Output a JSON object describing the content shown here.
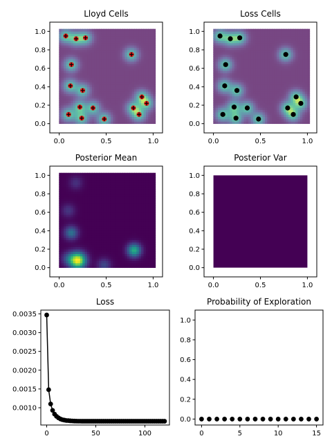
{
  "figure": {
    "background": "#ffffff",
    "panel_bg": "#ffffff",
    "axis_color": "#000000"
  },
  "chart_data": [
    {
      "id": "lloyd",
      "type": "scatter",
      "title": "Lloyd Cells",
      "xlim": [
        -0.1,
        1.1
      ],
      "ylim": [
        -0.1,
        1.1
      ],
      "xticks": [
        0.0,
        0.5,
        1.0
      ],
      "xtick_labels": [
        "0.0",
        "0.5",
        "1.0"
      ],
      "yticks": [
        0.0,
        0.2,
        0.4,
        0.6,
        0.8,
        1.0
      ],
      "ytick_labels": [
        "0.0",
        "0.2",
        "0.4",
        "0.6",
        "0.8",
        "1.0"
      ],
      "overlay": "voronoi",
      "marker": "plus",
      "marker_color": "#e11a1a",
      "points": [
        [
          0.07,
          0.95
        ],
        [
          0.18,
          0.92
        ],
        [
          0.28,
          0.93
        ],
        [
          0.13,
          0.64
        ],
        [
          0.77,
          0.75
        ],
        [
          0.12,
          0.41
        ],
        [
          0.25,
          0.36
        ],
        [
          0.88,
          0.29
        ],
        [
          0.22,
          0.18
        ],
        [
          0.36,
          0.17
        ],
        [
          0.79,
          0.17
        ],
        [
          0.93,
          0.22
        ],
        [
          0.1,
          0.1
        ],
        [
          0.24,
          0.06
        ],
        [
          0.48,
          0.05
        ],
        [
          0.85,
          0.1
        ]
      ]
    },
    {
      "id": "loss-cells",
      "type": "scatter",
      "title": "Loss Cells",
      "xlim": [
        -0.1,
        1.1
      ],
      "ylim": [
        -0.1,
        1.1
      ],
      "xticks": [
        0.0,
        0.5,
        1.0
      ],
      "xtick_labels": [
        "0.0",
        "0.5",
        "1.0"
      ],
      "yticks": [
        0.0,
        0.2,
        0.4,
        0.6,
        0.8,
        1.0
      ],
      "ytick_labels": [
        "0.0",
        "0.2",
        "0.4",
        "0.6",
        "0.8",
        "1.0"
      ],
      "overlay": "voronoi",
      "marker": "dot",
      "marker_color": "#000000",
      "points": [
        [
          0.07,
          0.95
        ],
        [
          0.18,
          0.92
        ],
        [
          0.28,
          0.93
        ],
        [
          0.13,
          0.64
        ],
        [
          0.77,
          0.75
        ],
        [
          0.12,
          0.41
        ],
        [
          0.25,
          0.36
        ],
        [
          0.88,
          0.29
        ],
        [
          0.22,
          0.18
        ],
        [
          0.36,
          0.17
        ],
        [
          0.79,
          0.17
        ],
        [
          0.93,
          0.22
        ],
        [
          0.1,
          0.1
        ],
        [
          0.24,
          0.06
        ],
        [
          0.48,
          0.05
        ],
        [
          0.85,
          0.1
        ]
      ]
    },
    {
      "id": "posterior-mean",
      "type": "heatmap",
      "title": "Posterior Mean",
      "xlim": [
        -0.1,
        1.1
      ],
      "ylim": [
        -0.1,
        1.1
      ],
      "xticks": [
        0.0,
        0.5,
        1.0
      ],
      "xtick_labels": [
        "0.0",
        "0.5",
        "1.0"
      ],
      "yticks": [
        0.0,
        0.2,
        0.4,
        0.6,
        0.8,
        1.0
      ],
      "ytick_labels": [
        "0.0",
        "0.2",
        "0.4",
        "0.6",
        "0.8",
        "1.0"
      ],
      "colormap": "viridis",
      "bumps": [
        {
          "x": 0.2,
          "y": 0.08,
          "amp": 1.0,
          "sigma": 0.06
        },
        {
          "x": 0.8,
          "y": 0.19,
          "amp": 0.62,
          "sigma": 0.05
        },
        {
          "x": 0.13,
          "y": 0.38,
          "amp": 0.38,
          "sigma": 0.05
        },
        {
          "x": 0.1,
          "y": 0.1,
          "amp": 0.22,
          "sigma": 0.05
        },
        {
          "x": 0.1,
          "y": 0.62,
          "amp": 0.16,
          "sigma": 0.05
        },
        {
          "x": 0.18,
          "y": 0.92,
          "amp": 0.14,
          "sigma": 0.05
        },
        {
          "x": 0.48,
          "y": 0.03,
          "amp": 0.22,
          "sigma": 0.05
        }
      ]
    },
    {
      "id": "posterior-var",
      "type": "heatmap",
      "title": "Posterior Var",
      "xlim": [
        -0.1,
        1.1
      ],
      "ylim": [
        -0.1,
        1.1
      ],
      "xticks": [
        0.0,
        0.5,
        1.0
      ],
      "xtick_labels": [
        "0.0",
        "0.5",
        "1.0"
      ],
      "yticks": [
        0.0,
        0.2,
        0.4,
        0.6,
        0.8,
        1.0
      ],
      "ytick_labels": [
        "0.0",
        "0.2",
        "0.4",
        "0.6",
        "0.8",
        "1.0"
      ],
      "colormap": "viridis",
      "fill_color": "#440154"
    },
    {
      "id": "loss",
      "type": "line",
      "title": "Loss",
      "xlim": [
        -6,
        125
      ],
      "ylim": [
        0.00054,
        0.0036
      ],
      "xticks": [
        0,
        50,
        100
      ],
      "xtick_labels": [
        "0",
        "50",
        "100"
      ],
      "yticks": [
        0.001,
        0.0015,
        0.002,
        0.0025,
        0.003,
        0.0035
      ],
      "ytick_labels": [
        "0.0010",
        "0.0015",
        "0.0020",
        "0.0025",
        "0.0030",
        "0.0035"
      ],
      "x_start": 0,
      "x_end": 120,
      "x_step": 2,
      "values": [
        0.00347,
        0.00148,
        0.0011,
        0.00093,
        0.00083,
        0.00077,
        0.00073,
        0.0007,
        0.00068,
        0.00067,
        0.00066,
        0.000657,
        0.000652,
        0.000648,
        0.000645,
        0.000643,
        0.000642,
        0.000641,
        0.00064,
        0.00064,
        0.00064,
        0.00064,
        0.00064,
        0.00064,
        0.00064,
        0.00064,
        0.00064,
        0.00064,
        0.00064,
        0.00064,
        0.00064,
        0.00064,
        0.00064,
        0.00064,
        0.00064,
        0.00064,
        0.00064,
        0.00064,
        0.00064,
        0.00064,
        0.00064,
        0.00064,
        0.00064,
        0.00064,
        0.00064,
        0.00064,
        0.00064,
        0.00064,
        0.00064,
        0.00064,
        0.00064,
        0.00064,
        0.00064,
        0.00064,
        0.00064,
        0.00064,
        0.00064,
        0.00064,
        0.00064,
        0.00064,
        0.00064
      ],
      "color": "#000000"
    },
    {
      "id": "prob-exploration",
      "type": "scatter",
      "title": "Probability of Exploration",
      "xlim": [
        -0.85,
        15.85
      ],
      "ylim": [
        -0.06,
        1.1
      ],
      "xticks": [
        0,
        5,
        10,
        15
      ],
      "xtick_labels": [
        "0",
        "5",
        "10",
        "15"
      ],
      "yticks": [
        0.0,
        0.2,
        0.4,
        0.6,
        0.8,
        1.0
      ],
      "ytick_labels": [
        "0.0",
        "0.2",
        "0.4",
        "0.6",
        "0.8",
        "1.0"
      ],
      "x": [
        0,
        1,
        2,
        3,
        4,
        5,
        6,
        7,
        8,
        9,
        10,
        11,
        12,
        13,
        14,
        15
      ],
      "values": [
        0,
        0,
        0,
        0,
        0,
        0,
        0,
        0,
        0,
        0,
        0,
        0,
        0,
        0,
        0,
        0
      ],
      "color": "#000000"
    }
  ]
}
